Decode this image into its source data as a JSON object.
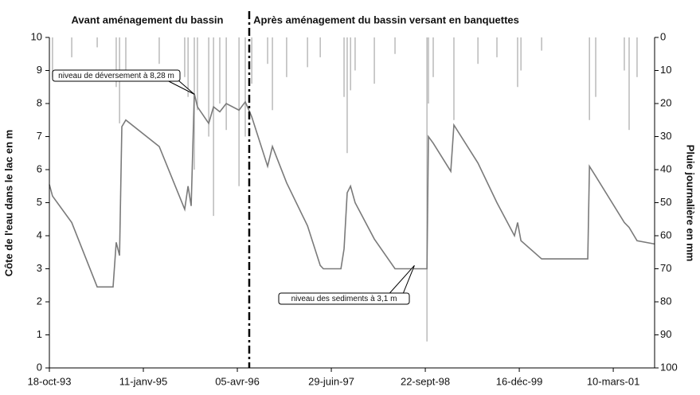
{
  "chart_data": {
    "type": "line",
    "header_left": "Avant aménagement du bassin",
    "header_right": "Après aménagement du bassin versant en banquettes",
    "ylabel": "Côte de l'eau dans le lac en m",
    "y2label": "Pluie journalière en mm",
    "xlim": [
      "1993-10-18",
      "2001-09-24"
    ],
    "xticks": [
      {
        "value": "1993-10-18",
        "label": "18-oct-93"
      },
      {
        "value": "1995-01-11",
        "label": "11-janv-95"
      },
      {
        "value": "1996-04-05",
        "label": "05-avr-96"
      },
      {
        "value": "1997-06-29",
        "label": "29-juin-97"
      },
      {
        "value": "1998-09-22",
        "label": "22-sept-98"
      },
      {
        "value": "1999-12-16",
        "label": "16-déc-99"
      },
      {
        "value": "2001-03-10",
        "label": "10-mars-01"
      }
    ],
    "ylim": [
      0,
      10
    ],
    "yticks": [
      0,
      1,
      2,
      3,
      4,
      5,
      6,
      7,
      8,
      9,
      10
    ],
    "y2lim": [
      100,
      0
    ],
    "y2ticks": [
      0,
      10,
      20,
      30,
      40,
      50,
      60,
      70,
      80,
      90,
      100
    ],
    "vline": "1996-06-01",
    "annotations": [
      {
        "text": "niveau de déversement à 8,28 m",
        "x": "1995-09-12",
        "y": 8.28
      },
      {
        "text": "niveau des sediments à 3,1 m",
        "x": "1998-08-01",
        "y": 3.1
      }
    ],
    "series": [
      {
        "type": "line",
        "color": "#7a7a7a",
        "x": [
          "1993-10-18",
          "1993-11-02",
          "1994-02-02",
          "1994-06-04",
          "1994-08-19",
          "1994-09-03",
          "1994-09-19",
          "1994-09-30",
          "1994-10-19",
          "1995-03-28",
          "1995-07-28",
          "1995-08-13",
          "1995-08-28",
          "1995-09-12",
          "1995-09-27",
          "1995-11-20",
          "1995-12-13",
          "1996-01-12",
          "1996-02-12",
          "1996-04-13",
          "1996-05-13",
          "1996-06-13",
          "1996-08-28",
          "1996-09-20",
          "1996-11-27",
          "1997-03-07",
          "1997-05-07",
          "1997-05-22",
          "1997-08-14",
          "1997-08-29",
          "1997-09-13",
          "1997-09-29",
          "1997-10-21",
          "1998-01-21",
          "1998-04-30",
          "1998-09-30",
          "1998-10-07",
          "1998-10-30",
          "1999-01-22",
          "1999-02-06",
          "1999-06-01",
          "1999-08-31",
          "1999-11-23",
          "1999-12-08",
          "1999-12-24",
          "2000-04-01",
          "2000-11-08",
          "2000-11-16",
          "2000-12-16",
          "2001-05-02",
          "2001-05-25",
          "2001-07-02",
          "2001-09-24"
        ],
        "values": [
          5.55,
          5.2,
          4.4,
          2.45,
          2.45,
          3.8,
          3.4,
          7.3,
          7.5,
          6.7,
          4.8,
          5.5,
          4.9,
          8.3,
          7.9,
          7.4,
          7.9,
          7.75,
          8.0,
          7.8,
          8.05,
          7.6,
          6.1,
          6.7,
          5.6,
          4.3,
          3.1,
          3.0,
          3.0,
          3.6,
          5.3,
          5.5,
          5.0,
          3.9,
          3.0,
          3.0,
          7.0,
          6.8,
          5.95,
          7.35,
          6.2,
          5.0,
          4.0,
          4.4,
          3.85,
          3.3,
          3.3,
          6.1,
          5.8,
          4.4,
          4.25,
          3.85,
          3.75
        ]
      },
      {
        "type": "bar",
        "axis": "y2",
        "color": "#b5b5b5",
        "x": [
          "1993-11-02",
          "1994-02-02",
          "1994-06-04",
          "1994-09-03",
          "1994-09-19",
          "1994-10-19",
          "1995-03-28",
          "1995-07-28",
          "1995-08-13",
          "1995-09-12",
          "1995-09-27",
          "1995-11-20",
          "1995-12-13",
          "1996-01-12",
          "1996-02-12",
          "1996-04-13",
          "1996-05-13",
          "1996-06-13",
          "1996-08-28",
          "1996-09-20",
          "1996-11-27",
          "1997-03-07",
          "1997-05-07",
          "1997-08-29",
          "1997-09-13",
          "1997-09-29",
          "1997-10-21",
          "1998-01-21",
          "1998-04-30",
          "1998-09-30",
          "1998-10-07",
          "1998-10-30",
          "1999-02-06",
          "1999-06-01",
          "1999-08-31",
          "1999-12-08",
          "1999-12-24",
          "2000-04-01",
          "2000-11-16",
          "2000-12-16",
          "2001-05-02",
          "2001-05-25",
          "2001-07-02"
        ],
        "values": [
          12,
          6,
          3,
          15,
          26,
          10,
          8,
          12,
          18,
          40,
          22,
          30,
          54,
          20,
          28,
          45,
          30,
          14,
          8,
          22,
          12,
          9,
          6,
          18,
          35,
          16,
          10,
          14,
          5,
          92,
          20,
          12,
          25,
          8,
          6,
          15,
          10,
          4,
          25,
          18,
          10,
          28,
          12
        ]
      }
    ]
  }
}
